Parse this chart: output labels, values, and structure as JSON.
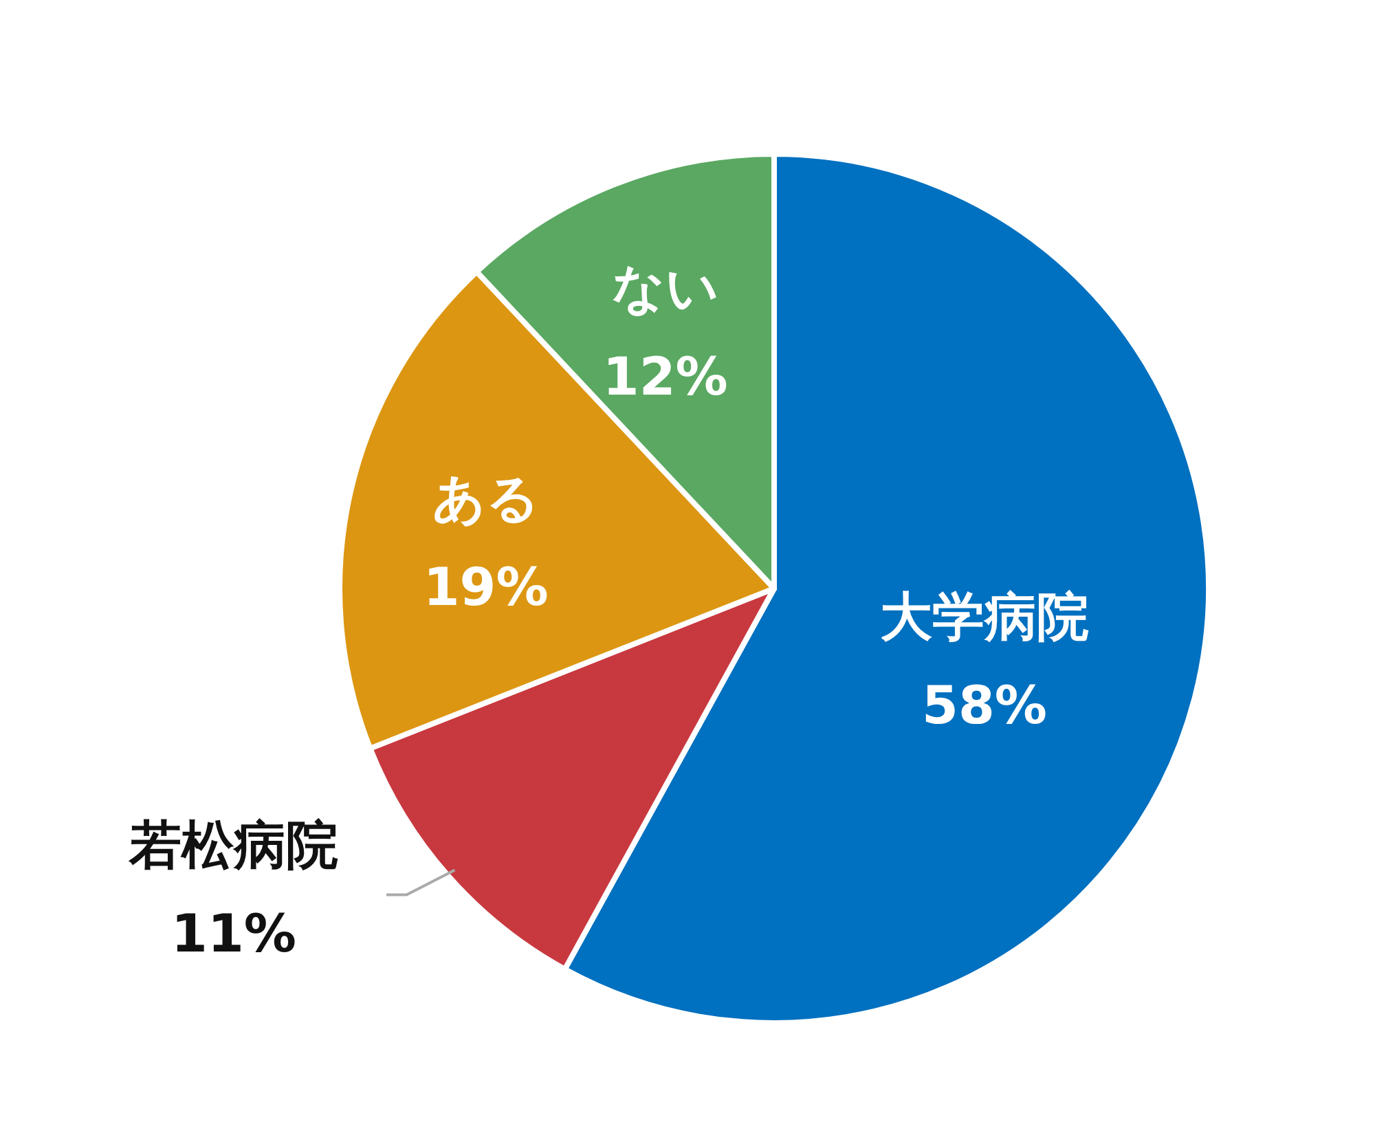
{
  "chart_data": {
    "type": "pie",
    "categories": [
      "大学病院",
      "若松病院",
      "ある",
      "ない"
    ],
    "values": [
      58,
      11,
      19,
      12
    ],
    "value_labels": [
      "58%",
      "11%",
      "19%",
      "12%"
    ],
    "colors": [
      "#0070c0",
      "#c8393f",
      "#dc9612",
      "#5aa862"
    ]
  }
}
